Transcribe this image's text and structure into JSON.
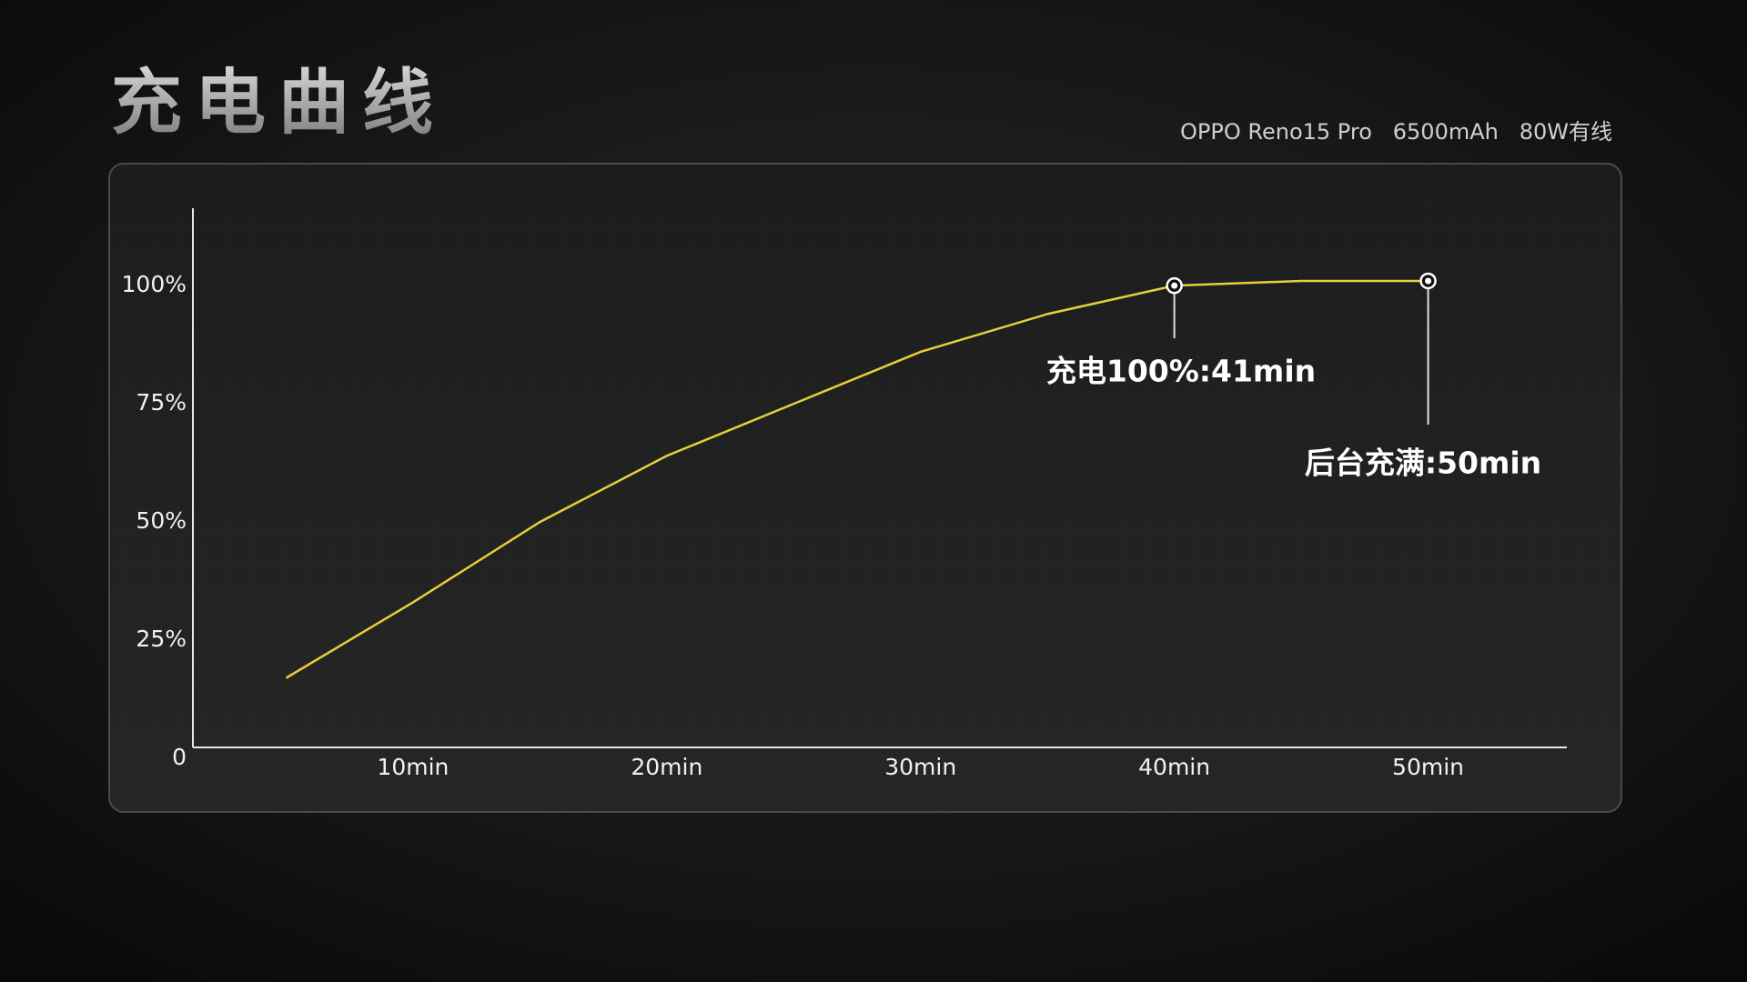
{
  "chart_data": {
    "type": "line",
    "title": "充电曲线",
    "subtitle": "OPPO Reno15 Pro   6500mAh   80W有线",
    "x": [
      5,
      10,
      15,
      20,
      25,
      30,
      35,
      40,
      45,
      50
    ],
    "series": [
      {
        "name": "充电曲线",
        "color": "#e6cf3a",
        "values": [
          17,
          33,
          50,
          64,
          75,
          86,
          94,
          100,
          101,
          101
        ]
      }
    ],
    "xlim": [
      0,
      55
    ],
    "xticks": [
      {
        "value": 10,
        "label": "10min"
      },
      {
        "value": 20,
        "label": "20min"
      },
      {
        "value": 30,
        "label": "30min"
      },
      {
        "value": 40,
        "label": "40min"
      },
      {
        "value": 50,
        "label": "50min"
      }
    ],
    "ylim": [
      0,
      116
    ],
    "yticks": [
      0,
      {
        "value": 25,
        "label": "25%"
      },
      {
        "value": 50,
        "label": "50%"
      },
      {
        "value": 75,
        "label": "75%"
      },
      {
        "value": 100,
        "label": "100%"
      }
    ],
    "annotations": [
      "充电100%:41min",
      "后台充满:50min"
    ]
  }
}
